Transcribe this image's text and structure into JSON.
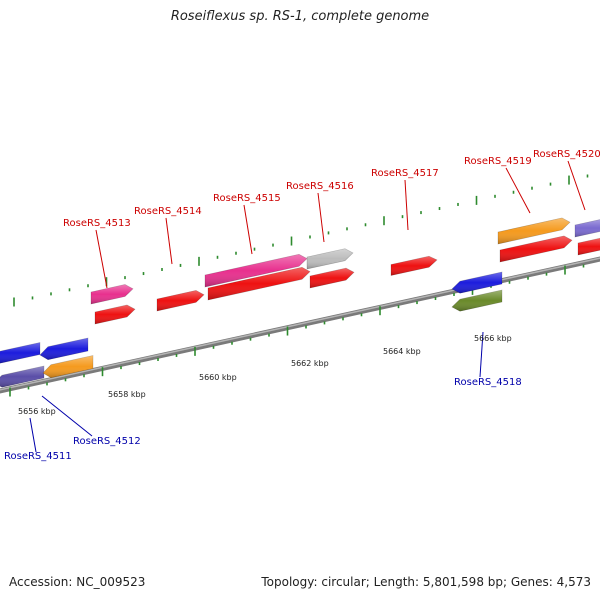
{
  "title": "Roseiflexus sp. RS-1, complete genome",
  "footer": {
    "accession": "Accession: NC_009523",
    "summary": "Topology: circular; Length: 5,801,598 bp; Genes: 4,573"
  },
  "colors": {
    "backbone": "#8a8a8a",
    "tick": "#2e8b2e",
    "label_forward": "#cc0000",
    "label_reverse": "#0000aa",
    "cds_red": "#ee1111",
    "pink": "#e8308e",
    "gray": "#bcbcbc",
    "orange": "#f59a1e",
    "blue": "#1c1cdd",
    "slate": "#5a4ea8",
    "olive": "#6a8a2a",
    "lavender": "#7a6ad0"
  },
  "scale_labels": [
    {
      "text": "5656 kbp"
    },
    {
      "text": "5658 kbp"
    },
    {
      "text": "5660 kbp"
    },
    {
      "text": "5662 kbp"
    },
    {
      "text": "5664 kbp"
    },
    {
      "text": "5666 kbp"
    }
  ],
  "gene_labels": [
    {
      "text": "RoseRS_4511",
      "strand": "reverse"
    },
    {
      "text": "RoseRS_4512",
      "strand": "reverse"
    },
    {
      "text": "RoseRS_4513",
      "strand": "forward"
    },
    {
      "text": "RoseRS_4514",
      "strand": "forward"
    },
    {
      "text": "RoseRS_4515",
      "strand": "forward"
    },
    {
      "text": "RoseRS_4516",
      "strand": "forward"
    },
    {
      "text": "RoseRS_4517",
      "strand": "forward"
    },
    {
      "text": "RoseRS_4518",
      "strand": "reverse"
    },
    {
      "text": "RoseRS_4519",
      "strand": "forward"
    },
    {
      "text": "RoseRS_4520",
      "strand": "forward"
    }
  ],
  "features": [
    {
      "name": "RoseRS_4511",
      "color": "blue",
      "strand": "reverse"
    },
    {
      "name": "RoseRS_4511",
      "color": "slate",
      "strand": "reverse"
    },
    {
      "name": "RoseRS_4512",
      "color": "blue",
      "strand": "reverse"
    },
    {
      "name": "RoseRS_4512",
      "color": "orange",
      "strand": "reverse"
    },
    {
      "name": "RoseRS_4513",
      "color": "pink",
      "strand": "forward"
    },
    {
      "name": "RoseRS_4513",
      "color": "cds_red",
      "strand": "forward"
    },
    {
      "name": "RoseRS_4514",
      "color": "cds_red",
      "strand": "forward"
    },
    {
      "name": "RoseRS_4515",
      "color": "pink",
      "strand": "forward"
    },
    {
      "name": "RoseRS_4515",
      "color": "cds_red",
      "strand": "forward"
    },
    {
      "name": "RoseRS_4516",
      "color": "gray",
      "strand": "forward"
    },
    {
      "name": "RoseRS_4516",
      "color": "cds_red",
      "strand": "forward"
    },
    {
      "name": "RoseRS_4517",
      "color": "cds_red",
      "strand": "forward"
    },
    {
      "name": "RoseRS_4518",
      "color": "blue",
      "strand": "reverse"
    },
    {
      "name": "RoseRS_4518",
      "color": "olive",
      "strand": "reverse"
    },
    {
      "name": "RoseRS_4519",
      "color": "orange",
      "strand": "forward"
    },
    {
      "name": "RoseRS_4519",
      "color": "cds_red",
      "strand": "forward"
    },
    {
      "name": "RoseRS_4520",
      "color": "lavender",
      "strand": "forward"
    },
    {
      "name": "RoseRS_4520",
      "color": "cds_red",
      "strand": "forward"
    }
  ]
}
